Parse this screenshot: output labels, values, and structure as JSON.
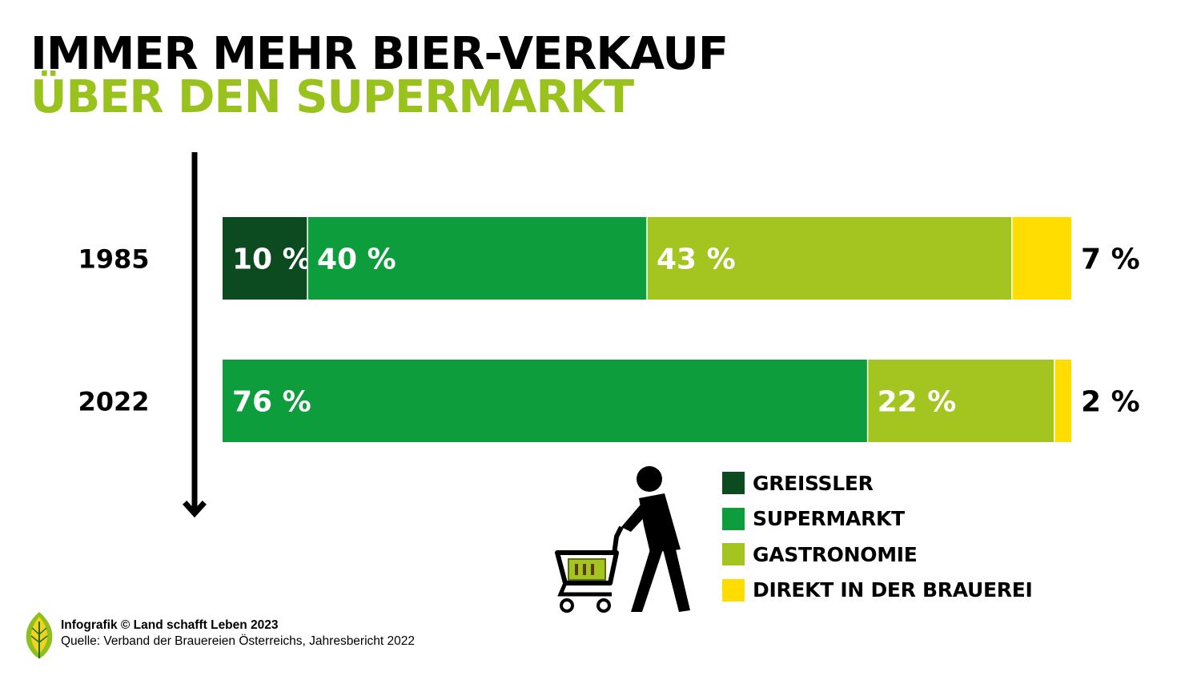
{
  "title": {
    "line1": "IMMER MEHR BIER-VERKAUF",
    "line2": "ÜBER DEN SUPERMARKT"
  },
  "colors": {
    "greissler": "#0c4a1f",
    "supermarkt": "#0e9d3d",
    "gastronomie": "#a4c520",
    "direkt": "#ffdd00",
    "title_accent": "#99c21c"
  },
  "chart_data": {
    "type": "bar",
    "orientation": "horizontal",
    "stacked": true,
    "unit": "%",
    "categories": [
      "1985",
      "2022"
    ],
    "series": [
      {
        "name": "GREISSLER",
        "values": [
          10,
          0
        ],
        "labels": [
          "10 %",
          ""
        ]
      },
      {
        "name": "SUPERMARKT",
        "values": [
          40,
          76
        ],
        "labels": [
          "40 %",
          "76 %"
        ]
      },
      {
        "name": "GASTRONOMIE",
        "values": [
          43,
          22
        ],
        "labels": [
          "43 %",
          "22 %"
        ]
      },
      {
        "name": "DIREKT IN DER BRAUEREI",
        "values": [
          7,
          2
        ],
        "labels": [
          "7 %",
          "2 %"
        ]
      }
    ],
    "legend_position": "bottom-right",
    "time_arrow": "down"
  },
  "legend": [
    {
      "key": "greissler",
      "label": "GREISSLER"
    },
    {
      "key": "supermarkt",
      "label": "SUPERMARKT"
    },
    {
      "key": "gastronomie",
      "label": "GASTRONOMIE"
    },
    {
      "key": "direkt",
      "label": "DIREKT IN DER BRAUEREI"
    }
  ],
  "footer": {
    "credit": "Infografik © Land schafft Leben 2023",
    "source": "Quelle: Verband der Brauereien Österreichs, Jahresbericht 2022"
  },
  "icons": [
    "shopper-with-cart-icon",
    "leaf-logo-icon",
    "down-arrow-icon"
  ]
}
